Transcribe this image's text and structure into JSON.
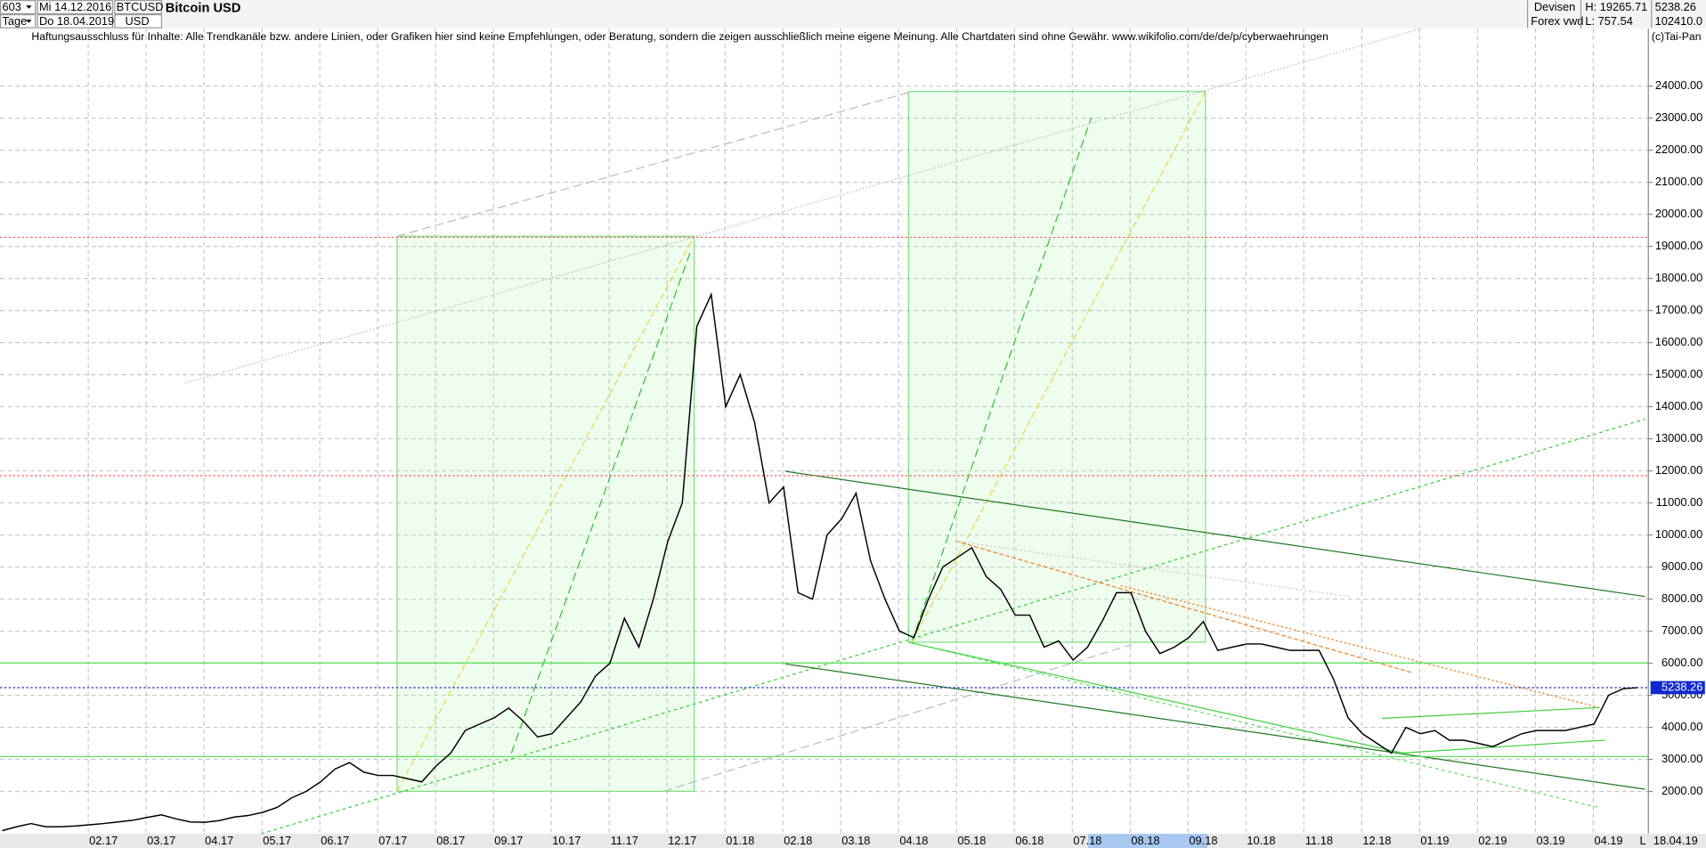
{
  "header": {
    "period": "603",
    "start_date": "Mi 14.12.2016",
    "symbol": "BTCUSD",
    "name": "Bitcoin USD",
    "interval": "Tage",
    "end_date": "Do 18.04.2019",
    "currency": "USD",
    "market": "Devisen",
    "source": "Forex vwd",
    "high": "H: 19265.71",
    "low": "L: 757.54",
    "last": "5238.26",
    "volume": "102410.0"
  },
  "disclaimer": "Haftungsausschluss für Inhalte: Alle Trendkanäle bzw. andere Linien, oder Grafiken hier sind keine Empfehlungen, oder Beratung, sondern die zeigen ausschließlich meine eigene Meinung. Alle Chartdaten sind ohne Gewähr.  www.wikifolio.com/de/de/p/cyberwaehrungen",
  "copyright": "(c)Tai-Pan",
  "chart_data": {
    "type": "line",
    "color": "#000000",
    "categories": [
      null,
      null,
      null,
      null,
      null,
      null,
      null,
      "02.17",
      null,
      null,
      null,
      "03.17",
      null,
      null,
      null,
      "04.17",
      null,
      null,
      null,
      "05.17",
      null,
      null,
      null,
      "06.17",
      null,
      null,
      null,
      "07.17",
      null,
      null,
      null,
      "08.17",
      null,
      null,
      null,
      "09.17",
      null,
      null,
      null,
      "10.17",
      null,
      null,
      null,
      "11.17",
      null,
      null,
      null,
      "12.17",
      null,
      null,
      null,
      "01.18",
      null,
      null,
      null,
      "02.18",
      null,
      null,
      null,
      "03.18",
      null,
      null,
      null,
      "04.18",
      null,
      null,
      null,
      "05.18",
      null,
      null,
      null,
      "06.18",
      null,
      null,
      null,
      "07.18",
      null,
      null,
      null,
      "08.18",
      null,
      null,
      null,
      "09.18",
      null,
      null,
      null,
      "10.18",
      null,
      null,
      null,
      "11.18",
      null,
      null,
      null,
      "12.18",
      null,
      null,
      null,
      "01.19",
      null,
      null,
      null,
      "02.19",
      null,
      null,
      null,
      "03.19",
      null,
      null,
      null,
      "04.19",
      null,
      null
    ],
    "values": [
      780,
      900,
      1000,
      900,
      900,
      920,
      960,
      1000,
      1050,
      1100,
      1190,
      1270,
      1150,
      1050,
      1040,
      1090,
      1200,
      1250,
      1350,
      1500,
      1800,
      2000,
      2300,
      2700,
      2900,
      2600,
      2500,
      2500,
      2400,
      2300,
      2800,
      3200,
      3900,
      4100,
      4300,
      4600,
      4200,
      3700,
      3800,
      4300,
      4800,
      5600,
      6000,
      7400,
      6500,
      8000,
      9800,
      11000,
      16500,
      17500,
      14000,
      15000,
      13500,
      11000,
      11500,
      8200,
      8000,
      10000,
      10500,
      11300,
      9200,
      8000,
      7000,
      6800,
      8000,
      9000,
      9300,
      9600,
      8700,
      8300,
      7500,
      7500,
      6500,
      6700,
      6100,
      6500,
      7300,
      8200,
      8200,
      7000,
      6300,
      6500,
      6800,
      7300,
      6400,
      6500,
      6600,
      6600,
      6500,
      6400,
      6400,
      6400,
      5500,
      4300,
      3800,
      3500,
      3200,
      4000,
      3800,
      3900,
      3600,
      3600,
      3500,
      3400,
      3600,
      3800,
      3900,
      3900,
      3900,
      4000,
      4100,
      5000,
      5200,
      5240
    ],
    "x_end_label": "18.04.19",
    "x_axis_marker": "L",
    "current_price": {
      "value": 5238.26,
      "label": "5238.26"
    },
    "ylim": [
      680,
      25460
    ],
    "yticks": [
      {
        "value": 2000,
        "label": "2000.00"
      },
      {
        "value": 3000,
        "label": "3000.00"
      },
      {
        "value": 4000,
        "label": "4000.00"
      },
      {
        "value": 5000,
        "label": "5000.00"
      },
      {
        "value": 6000,
        "label": "6000.00"
      },
      {
        "value": 7000,
        "label": "7000.00"
      },
      {
        "value": 8000,
        "label": "8000.00"
      },
      {
        "value": 9000,
        "label": "9000.00"
      },
      {
        "value": 10000,
        "label": "10000.00"
      },
      {
        "value": 11000,
        "label": "11000.00"
      },
      {
        "value": 12000,
        "label": "12000.00"
      },
      {
        "value": 13000,
        "label": "13000.00"
      },
      {
        "value": 14000,
        "label": "14000.00"
      },
      {
        "value": 15000,
        "label": "15000.00"
      },
      {
        "value": 16000,
        "label": "16000.00"
      },
      {
        "value": 17000,
        "label": "17000.00"
      },
      {
        "value": 18000,
        "label": "18000.00"
      },
      {
        "value": 19000,
        "label": "19000.00"
      },
      {
        "value": 20000,
        "label": "20000.00"
      },
      {
        "value": 21000,
        "label": "21000.00"
      },
      {
        "value": 22000,
        "label": "22000.00"
      },
      {
        "value": 23000,
        "label": "23000.00"
      },
      {
        "value": 24000,
        "label": "24000.00"
      }
    ],
    "grid": true
  }
}
